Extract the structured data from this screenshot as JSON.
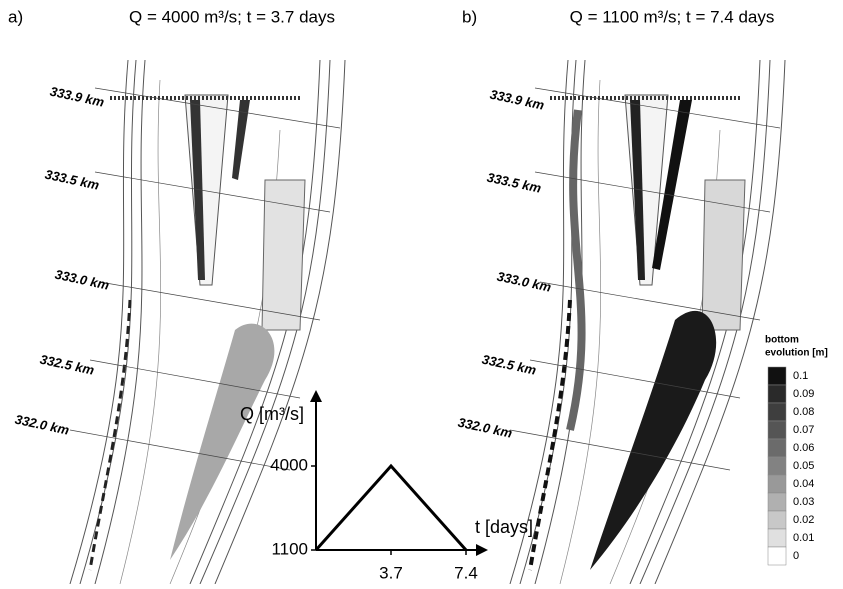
{
  "panels": [
    {
      "label": "a)",
      "title": "Q = 4000 m³/s; t = 3.7 days",
      "km_labels": [
        "333.9 km",
        "333.5 km",
        "333.0 km",
        "332.5 km",
        "332.0 km"
      ]
    },
    {
      "label": "b)",
      "title": "Q = 1100 m³/s; t = 7.4 days",
      "km_labels": [
        "333.9 km",
        "333.5 km",
        "333.0 km",
        "332.5 km",
        "332.0 km"
      ]
    }
  ],
  "legend": {
    "title_lines": [
      "bottom",
      "evolution [m]"
    ],
    "values": [
      0.1,
      0.09,
      0.08,
      0.07,
      0.06,
      0.05,
      0.04,
      0.03,
      0.02,
      0.01,
      0
    ],
    "colors": [
      "#111111",
      "#2a2a2a",
      "#3e3e3e",
      "#555555",
      "#6b6b6b",
      "#828282",
      "#999999",
      "#b0b0b0",
      "#c8c8c8",
      "#e0e0e0",
      "#ffffff"
    ]
  },
  "hydrograph": {
    "y_label": "Q [m³/s]",
    "x_label": "t [days]",
    "x": [
      0,
      3.7,
      7.4
    ],
    "values": [
      1100,
      4000,
      1100
    ],
    "xticks": [
      3.7,
      7.4
    ],
    "yticks": [
      1100,
      4000
    ],
    "color": "#000000"
  }
}
